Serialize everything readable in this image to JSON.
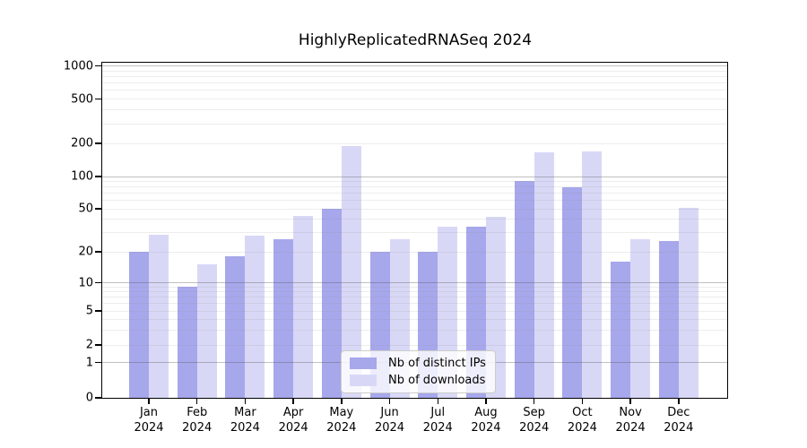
{
  "title": "HighlyReplicatedRNASeq 2024",
  "legend": {
    "items": [
      {
        "label": "Nb of distinct IPs",
        "color": "#a7a7ec"
      },
      {
        "label": "Nb of downloads",
        "color": "#d8d8f6"
      }
    ]
  },
  "axes": {
    "y_tick_labels": [
      "0",
      "1",
      "2",
      "5",
      "10",
      "20",
      "50",
      "100",
      "200",
      "500",
      "1000"
    ],
    "x_tick_months": [
      "Jan",
      "Feb",
      "Mar",
      "Apr",
      "May",
      "Jun",
      "Jul",
      "Aug",
      "Sep",
      "Oct",
      "Nov",
      "Dec"
    ],
    "x_tick_year": "2024"
  },
  "chart_data": {
    "type": "bar",
    "title": "HighlyReplicatedRNASeq 2024",
    "categories": [
      "Jan 2024",
      "Feb 2024",
      "Mar 2024",
      "Apr 2024",
      "May 2024",
      "Jun 2024",
      "Jul 2024",
      "Aug 2024",
      "Sep 2024",
      "Oct 2024",
      "Nov 2024",
      "Dec 2024"
    ],
    "series": [
      {
        "name": "Nb of distinct IPs",
        "color": "#a7a7ec",
        "values": [
          20,
          9,
          18,
          26,
          50,
          20,
          20,
          34,
          90,
          80,
          16,
          25
        ]
      },
      {
        "name": "Nb of downloads",
        "color": "#d8d8f6",
        "values": [
          29,
          15,
          28,
          43,
          190,
          26,
          34,
          42,
          165,
          170,
          26,
          51
        ]
      }
    ],
    "xlabel": "",
    "ylabel": "",
    "yscale": "symlog",
    "y_ticks": [
      0,
      1,
      2,
      5,
      10,
      20,
      50,
      100,
      200,
      500,
      1000
    ],
    "ylim": [
      0,
      1100
    ],
    "grid": true,
    "grid_major_at": [
      1,
      10,
      100,
      1000
    ],
    "legend_position": "inside-bottom-center"
  }
}
